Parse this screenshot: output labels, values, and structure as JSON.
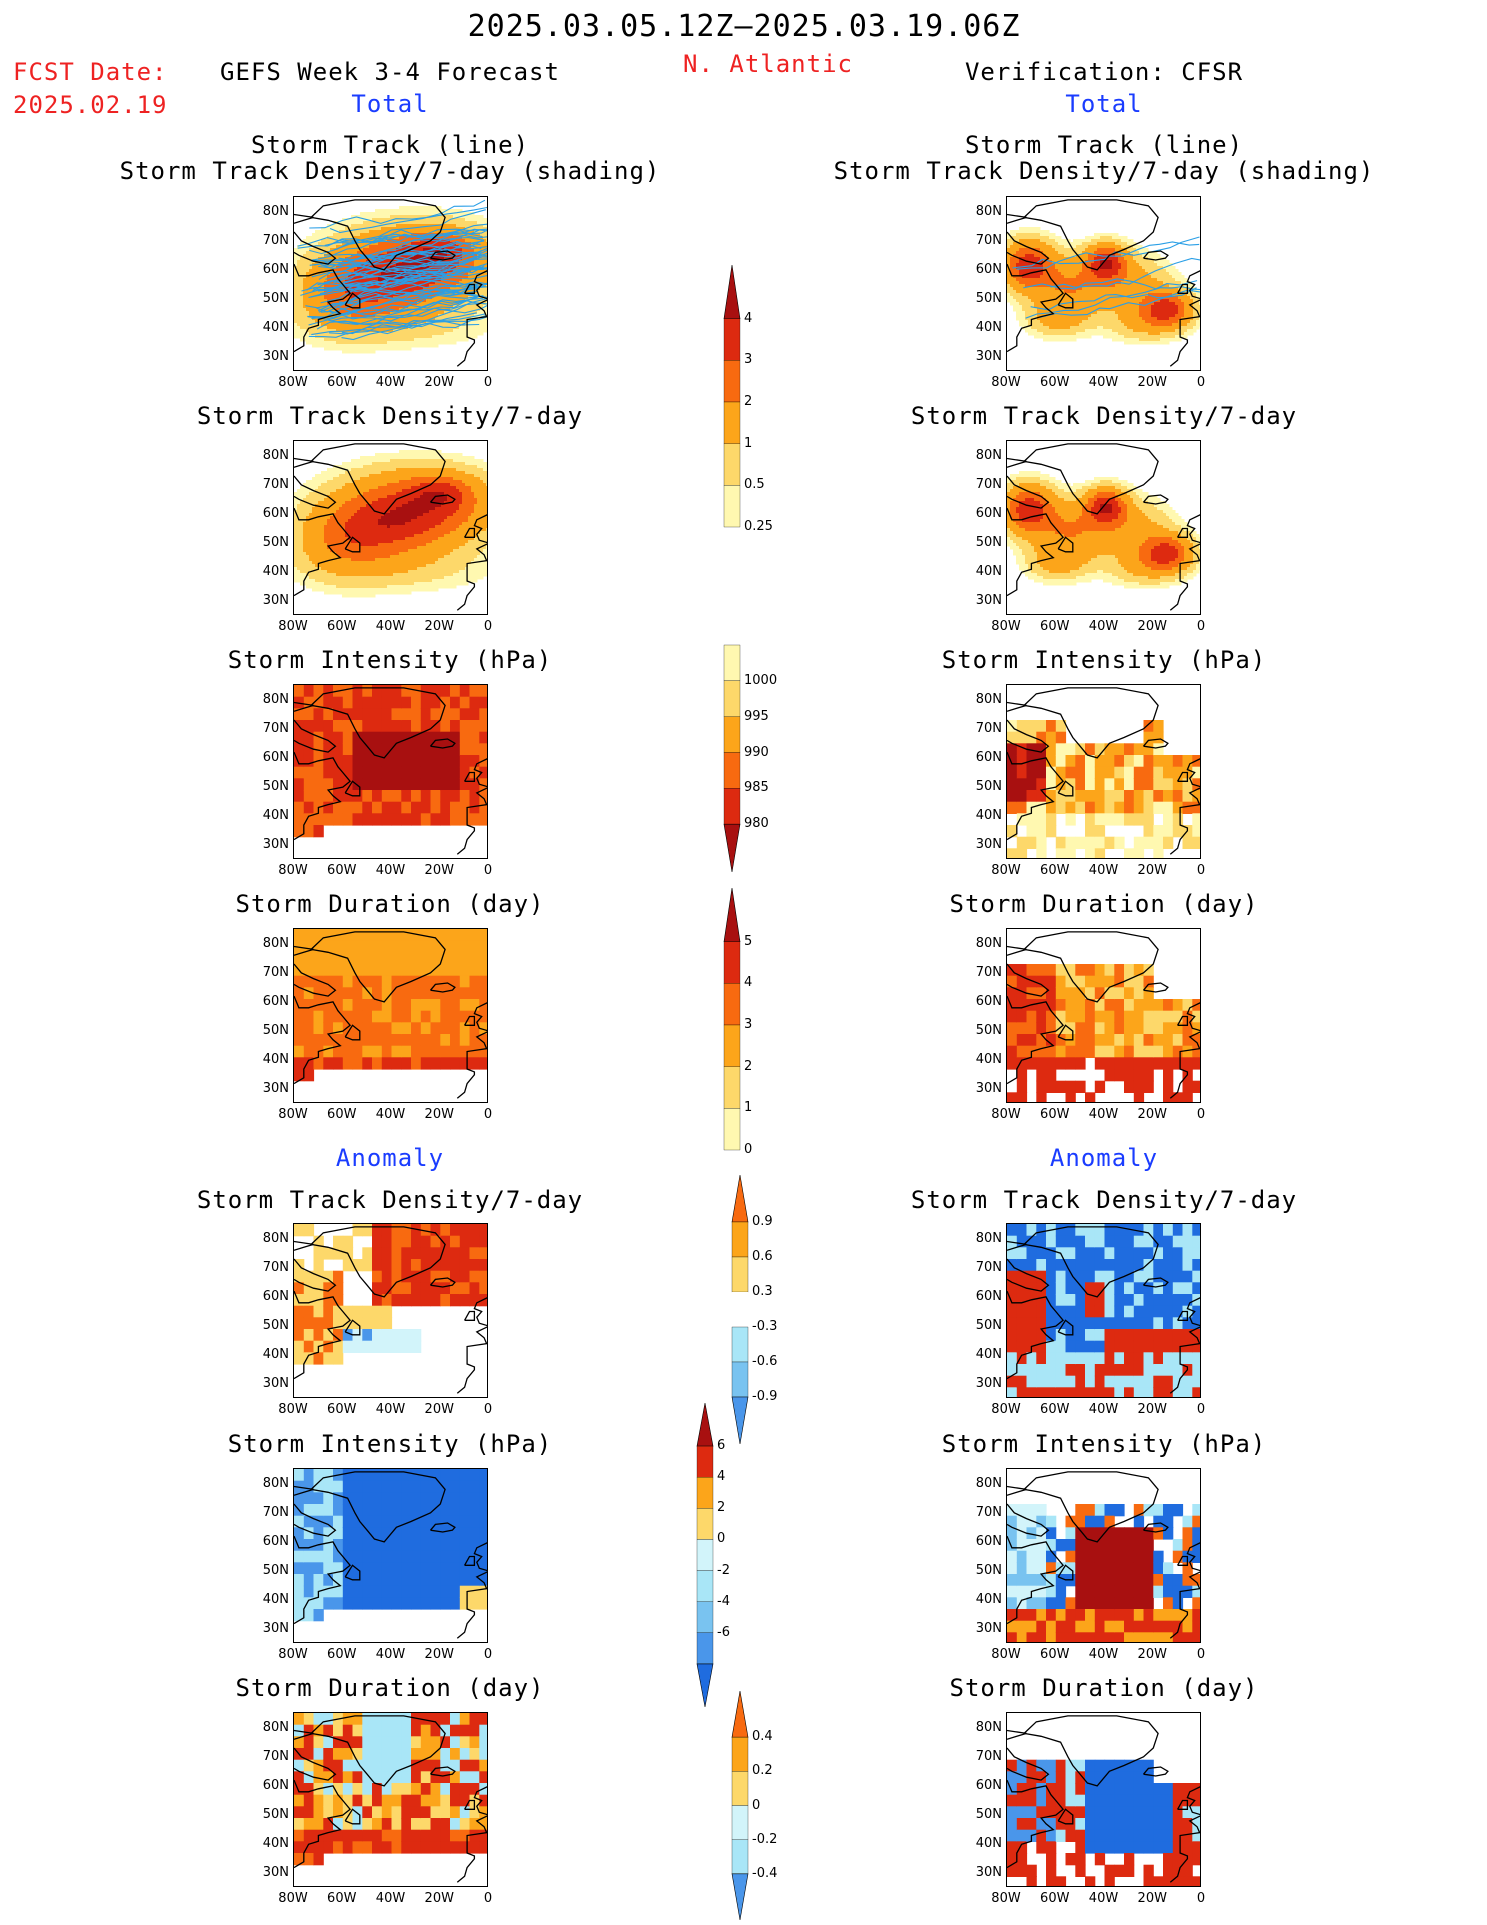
{
  "header": {
    "date_range": "2025.03.05.12Z–2025.03.19.06Z",
    "fcst_label": "FCST Date:",
    "fcst_date": "2025.02.19",
    "left_title": "GEFS Week 3-4 Forecast",
    "region": "N. Atlantic",
    "right_title": "Verification: CFSR",
    "left_total": "Total",
    "right_total": "Total"
  },
  "section_labels": {
    "left_anomaly": "Anomaly",
    "right_anomaly": "Anomaly"
  },
  "panel_titles": {
    "track_line": "Storm Track (line)",
    "track_shading": "Storm Track Density/7-day (shading)",
    "track_density": "Storm Track Density/7-day",
    "intensity": "Storm Intensity (hPa)",
    "duration": "Storm Duration (day)"
  },
  "axes": {
    "lat_labels": [
      "80N",
      "70N",
      "60N",
      "50N",
      "40N",
      "30N"
    ],
    "lon_labels": [
      "80W",
      "60W",
      "40W",
      "20W",
      "0"
    ]
  },
  "colorbars": {
    "density_total": [
      "4",
      "3",
      "2",
      "1",
      "0.5",
      "0.25"
    ],
    "intensity_total": [
      "1000",
      "995",
      "990",
      "985",
      "980"
    ],
    "duration_total": [
      "5",
      "4",
      "3",
      "2",
      "1",
      "0"
    ],
    "density_anom": [
      "0.9",
      "0.6",
      "0.3",
      "-0.3",
      "-0.6",
      "-0.9"
    ],
    "intensity_anom": [
      "6",
      "4",
      "2",
      "0",
      "-2",
      "-4",
      "-6"
    ],
    "duration_anom": [
      "0.4",
      "0.2",
      "0",
      "-0.2",
      "-0.4"
    ]
  },
  "colors": {
    "title_red": "#ee2222",
    "title_blue": "#1a3cff",
    "warm": [
      "#fff8b0",
      "#fdd86a",
      "#fca51a",
      "#f86a10",
      "#dd2a10",
      "#a81010"
    ],
    "cool": [
      "#d2f4fa",
      "#a9e6f7",
      "#79c3f0",
      "#4a96ea",
      "#1f6cdf"
    ],
    "track_line": "#2a9fe6"
  }
}
